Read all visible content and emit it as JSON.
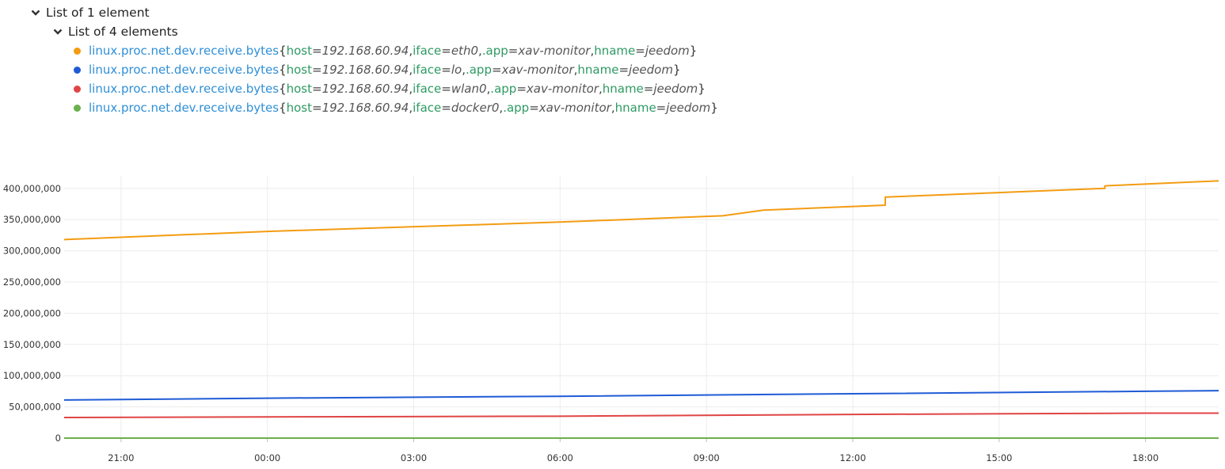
{
  "tree": {
    "root_label": "List of 1 element",
    "child_label": "List of 4 elements",
    "icon": "chevron-down-icon"
  },
  "legend_items": [
    {
      "metric": "linux.proc.net.dev.receive.bytes",
      "tags": [
        {
          "key": "host",
          "value": "192.168.60.94"
        },
        {
          "key": "iface",
          "value": "eth0"
        },
        {
          "key": ".app",
          "value": "xav-monitor"
        },
        {
          "key": "hname",
          "value": "jeedom"
        }
      ],
      "color": "#f39c12"
    },
    {
      "metric": "linux.proc.net.dev.receive.bytes",
      "tags": [
        {
          "key": "host",
          "value": "192.168.60.94"
        },
        {
          "key": "iface",
          "value": "lo"
        },
        {
          "key": ".app",
          "value": "xav-monitor"
        },
        {
          "key": "hname",
          "value": "jeedom"
        }
      ],
      "color": "#1f5bd6"
    },
    {
      "metric": "linux.proc.net.dev.receive.bytes",
      "tags": [
        {
          "key": "host",
          "value": "192.168.60.94"
        },
        {
          "key": "iface",
          "value": "wlan0"
        },
        {
          "key": ".app",
          "value": "xav-monitor"
        },
        {
          "key": "hname",
          "value": "jeedom"
        }
      ],
      "color": "#e04545"
    },
    {
      "metric": "linux.proc.net.dev.receive.bytes",
      "tags": [
        {
          "key": "host",
          "value": "192.168.60.94"
        },
        {
          "key": "iface",
          "value": "docker0"
        },
        {
          "key": ".app",
          "value": "xav-monitor"
        },
        {
          "key": "hname",
          "value": "jeedom"
        }
      ],
      "color": "#6ab04c"
    }
  ],
  "chart_data": {
    "type": "line",
    "title": "",
    "xlabel": "",
    "ylabel": "",
    "ylim": [
      0,
      420000000
    ],
    "xlim": [
      "19:50",
      "19:30"
    ],
    "x_ticks": [
      "21:00",
      "00:00",
      "03:00",
      "06:00",
      "09:00",
      "12:00",
      "15:00",
      "18:00"
    ],
    "y_ticks": [
      "0",
      "50,000,000",
      "100,000,000",
      "150,000,000",
      "200,000,000",
      "250,000,000",
      "300,000,000",
      "350,000,000",
      "400,000,000"
    ],
    "y_tick_values": [
      0,
      50000000,
      100000000,
      150000000,
      200000000,
      250000000,
      300000000,
      350000000,
      400000000
    ],
    "grid": true,
    "series": [
      {
        "color": "#f39c12",
        "points": [
          [
            "19:50",
            318000000
          ],
          [
            "00:00",
            331000000
          ],
          [
            "06:00",
            346000000
          ],
          [
            "09:20",
            356000000
          ],
          [
            "10:10",
            365000000
          ],
          [
            "12:40",
            373000000
          ],
          [
            "12:40",
            386000000
          ],
          [
            "17:10",
            400000000
          ],
          [
            "17:10",
            404000000
          ],
          [
            "19:30",
            412000000
          ]
        ]
      },
      {
        "color": "#1f5bd6",
        "points": [
          [
            "19:50",
            61000000
          ],
          [
            "00:00",
            64000000
          ],
          [
            "06:00",
            67000000
          ],
          [
            "12:00",
            71000000
          ],
          [
            "18:00",
            75000000
          ],
          [
            "19:30",
            76000000
          ]
        ]
      },
      {
        "color": "#e04545",
        "points": [
          [
            "19:50",
            33000000
          ],
          [
            "00:00",
            34000000
          ],
          [
            "06:00",
            35000000
          ],
          [
            "12:00",
            38000000
          ],
          [
            "18:00",
            40000000
          ],
          [
            "19:30",
            40000000
          ]
        ]
      },
      {
        "color": "#6ab04c",
        "points": [
          [
            "19:50",
            0
          ],
          [
            "19:30",
            0
          ]
        ]
      }
    ]
  }
}
